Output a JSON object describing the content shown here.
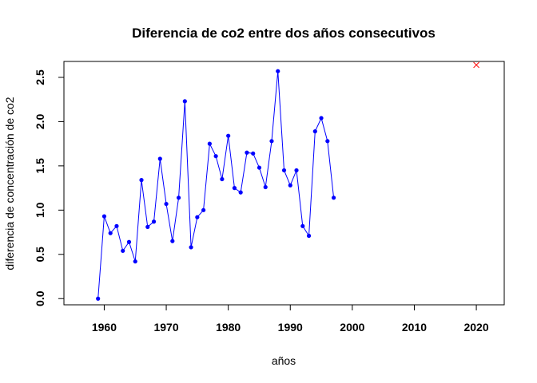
{
  "chart_data": {
    "type": "line",
    "title": "Diferencia de co2 entre dos años consecutivos",
    "xlabel": "años",
    "ylabel": "diferencia de concentración de co2",
    "xlim": [
      1953.5,
      2024.5
    ],
    "ylim": [
      -0.07,
      2.68
    ],
    "x_ticks": [
      "1960",
      "1970",
      "1980",
      "1990",
      "2000",
      "2010",
      "2020"
    ],
    "y_ticks": [
      "0.0",
      "0.5",
      "1.0",
      "1.5",
      "2.0",
      "2.5"
    ],
    "grid": false,
    "colors": {
      "series": "#0000ff",
      "marker_point": "#ff0000",
      "axis": "#000000"
    },
    "series": [
      {
        "x": [
          1959,
          1960,
          1961,
          1962,
          1963,
          1964,
          1965,
          1966,
          1967,
          1968,
          1969,
          1970,
          1971,
          1972,
          1973,
          1974,
          1975,
          1976,
          1977,
          1978,
          1979,
          1980,
          1981,
          1982,
          1983,
          1984,
          1985,
          1986,
          1987,
          1988,
          1989,
          1990,
          1991,
          1992,
          1993,
          1994,
          1995,
          1996,
          1997
        ],
        "values": [
          0.0,
          0.93,
          0.74,
          0.82,
          0.54,
          0.64,
          0.42,
          1.34,
          0.81,
          0.87,
          1.58,
          1.07,
          0.65,
          1.14,
          2.23,
          0.58,
          0.92,
          1.0,
          1.75,
          1.61,
          1.35,
          1.84,
          1.25,
          1.2,
          1.65,
          1.64,
          1.48,
          1.26,
          1.78,
          2.57,
          1.45,
          1.28,
          1.45,
          0.82,
          0.71,
          1.89,
          2.04,
          1.78,
          1.14
        ]
      }
    ],
    "extra_points": [
      {
        "x": 2020,
        "y": 2.64,
        "marker": "x"
      }
    ]
  }
}
